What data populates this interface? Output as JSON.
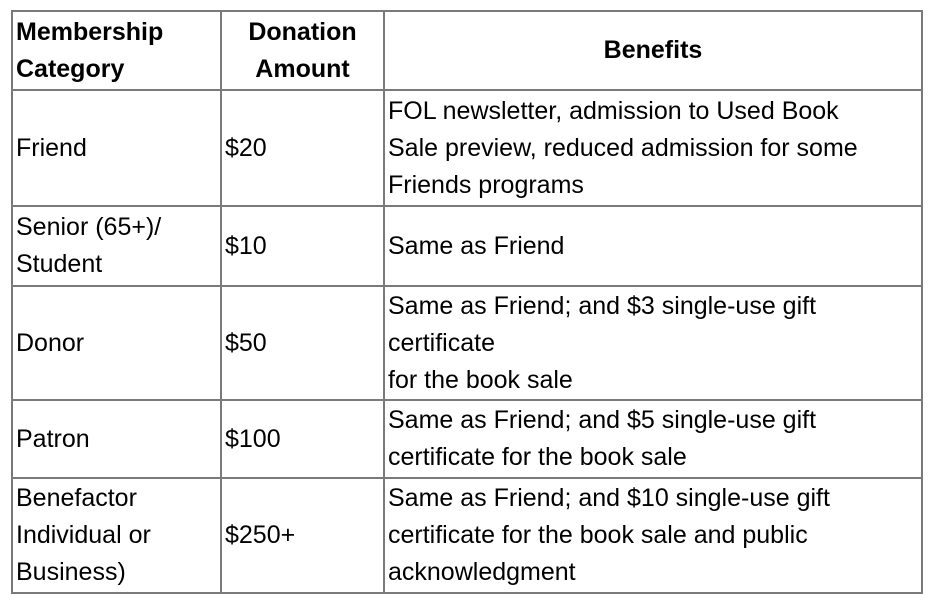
{
  "headers": [
    "Membership\nCategory",
    "Donation\nAmount",
    "Benefits"
  ],
  "rows": [
    {
      "category": "Friend",
      "amount": "$20",
      "benefits": "FOL newsletter, admission to Used Book\nSale preview, reduced admission for some\nFriends programs"
    },
    {
      "category": "Senior (65+)/\nStudent",
      "amount": "$10",
      "benefits": "Same as Friend"
    },
    {
      "category": "Donor",
      "amount": "$50",
      "benefits": "Same as Friend; and $3 single-use gift\ncertificate\nfor the book sale"
    },
    {
      "category": "Patron",
      "amount": "$100",
      "benefits": "Same as Friend; and $5 single-use gift\ncertificate for the book sale"
    },
    {
      "category": "Benefactor\nIndividual or\nBusiness)",
      "amount": "$250+",
      "benefits": "Same as Friend; and $10 single-use gift\ncertificate for the book sale and public\nacknowledgment"
    }
  ]
}
